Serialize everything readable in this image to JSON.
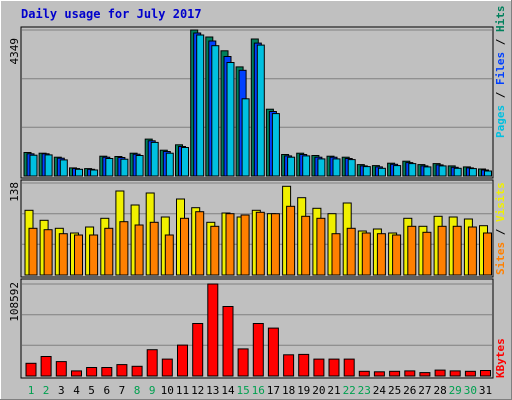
{
  "title": "Daily usage for July 2017",
  "colors": {
    "background": "#C0C0C0",
    "title": "#0000CC",
    "hits": "#00805C",
    "files": "#0040FF",
    "pages": "#00C0E0",
    "visits": "#F0F000",
    "sites": "#FF8000",
    "kbytes": "#FF0000",
    "weekend_label": "#00A050",
    "weekday_label": "#000000"
  },
  "chart_data": [
    {
      "type": "bar",
      "panel": "hits-files-pages",
      "categories": [
        "1",
        "2",
        "3",
        "4",
        "5",
        "6",
        "7",
        "8",
        "9",
        "10",
        "11",
        "12",
        "13",
        "14",
        "15",
        "16",
        "17",
        "18",
        "19",
        "20",
        "21",
        "22",
        "23",
        "24",
        "25",
        "26",
        "27",
        "28",
        "29",
        "30",
        "31"
      ],
      "weekend_days": [
        "1",
        "2",
        "8",
        "9",
        "15",
        "16",
        "22",
        "23",
        "29",
        "30"
      ],
      "ymax_label": "4349",
      "ymax": 4349,
      "legend": [
        "Pages",
        "Files",
        "Hits"
      ],
      "series": [
        {
          "name": "Hits",
          "values": [
            700,
            680,
            560,
            240,
            220,
            590,
            580,
            680,
            1100,
            770,
            930,
            4349,
            4140,
            3730,
            3250,
            4080,
            1990,
            640,
            680,
            610,
            590,
            560,
            340,
            310,
            380,
            440,
            340,
            370,
            300,
            270,
            210
          ]
        },
        {
          "name": "Files",
          "values": [
            660,
            660,
            530,
            220,
            200,
            560,
            550,
            650,
            1050,
            730,
            880,
            4260,
            4020,
            3560,
            3150,
            3960,
            1920,
            600,
            640,
            560,
            560,
            520,
            300,
            270,
            350,
            400,
            300,
            330,
            260,
            240,
            180
          ]
        },
        {
          "name": "Pages",
          "values": [
            620,
            630,
            480,
            200,
            180,
            520,
            500,
            610,
            1000,
            680,
            850,
            4200,
            3880,
            3380,
            2300,
            3900,
            1860,
            560,
            600,
            510,
            510,
            490,
            280,
            230,
            310,
            370,
            270,
            300,
            230,
            220,
            150
          ]
        }
      ]
    },
    {
      "type": "bar",
      "panel": "visits-sites",
      "categories": [
        "1",
        "2",
        "3",
        "4",
        "5",
        "6",
        "7",
        "8",
        "9",
        "10",
        "11",
        "12",
        "13",
        "14",
        "15",
        "16",
        "17",
        "18",
        "19",
        "20",
        "21",
        "22",
        "23",
        "24",
        "25",
        "26",
        "27",
        "28",
        "29",
        "30",
        "31"
      ],
      "ymax_label": "138",
      "ymax": 138,
      "legend": [
        "Sites",
        "Visits"
      ],
      "series": [
        {
          "name": "Visits",
          "values": [
            97,
            82,
            70,
            63,
            72,
            85,
            126,
            105,
            123,
            87,
            114,
            101,
            79,
            93,
            87,
            97,
            92,
            133,
            116,
            100,
            92,
            108,
            66,
            69,
            63,
            85,
            73,
            88,
            87,
            84,
            74
          ]
        },
        {
          "name": "Sites",
          "values": [
            70,
            68,
            62,
            60,
            60,
            70,
            80,
            75,
            79,
            60,
            85,
            95,
            73,
            92,
            90,
            94,
            92,
            103,
            88,
            85,
            62,
            70,
            63,
            62,
            60,
            73,
            64,
            73,
            73,
            72,
            63
          ]
        }
      ]
    },
    {
      "type": "bar",
      "panel": "kbytes",
      "categories": [
        "1",
        "2",
        "3",
        "4",
        "5",
        "6",
        "7",
        "8",
        "9",
        "10",
        "11",
        "12",
        "13",
        "14",
        "15",
        "16",
        "17",
        "18",
        "19",
        "20",
        "21",
        "22",
        "23",
        "24",
        "25",
        "26",
        "27",
        "28",
        "29",
        "30",
        "31"
      ],
      "ymax_label": "108592",
      "ymax": 108592,
      "legend": [
        "KBytes"
      ],
      "series": [
        {
          "name": "KBytes",
          "values": [
            15000,
            23000,
            17000,
            6000,
            10000,
            10000,
            13500,
            11500,
            31000,
            20000,
            36500,
            62000,
            108592,
            82000,
            32000,
            62000,
            56500,
            25000,
            25500,
            20000,
            20000,
            20000,
            5500,
            5000,
            5500,
            6000,
            4000,
            7000,
            6000,
            5500,
            6500
          ]
        }
      ]
    }
  ]
}
